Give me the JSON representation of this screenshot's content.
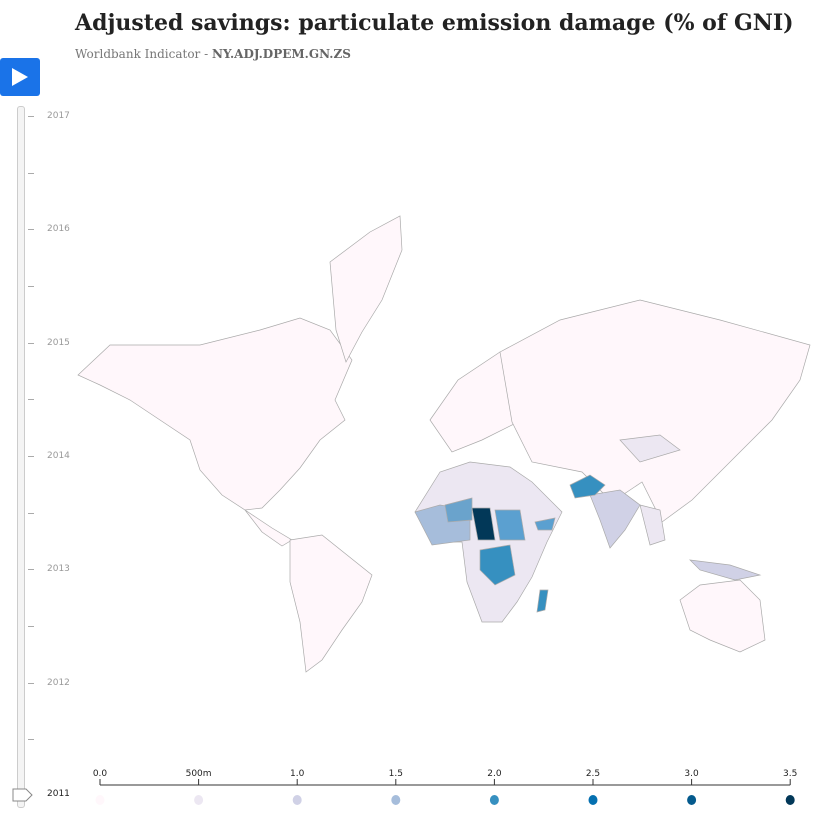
{
  "title": "Adjusted savings: particulate emission damage (% of GNI)",
  "subtitle_prefix": "Worldbank Indicator - ",
  "subtitle_code": "NY.ADJ.DPEM.GN.ZS",
  "play_icon": "play-icon",
  "timeline": {
    "years": [
      "2017",
      "2016",
      "2015",
      "2014",
      "2013",
      "2012"
    ],
    "current": "2011"
  },
  "legend": {
    "labels": [
      "0.0",
      "500m",
      "1.0",
      "1.5",
      "2.0",
      "2.5",
      "3.0",
      "3.5"
    ],
    "colors": [
      "#fff7fb",
      "#ece7f2",
      "#d0d1e6",
      "#a6bddb",
      "#3690c0",
      "#0570b0",
      "#045a8d",
      "#023858"
    ]
  },
  "map": {
    "base_color": "#fff7fb",
    "border_color": "#aaaaaa"
  }
}
